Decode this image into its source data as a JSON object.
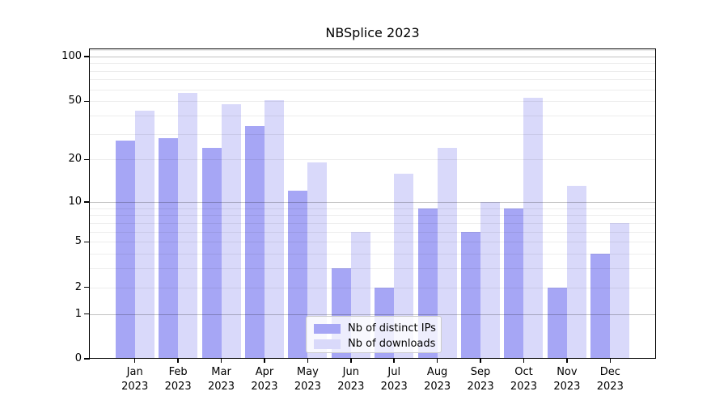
{
  "chart_data": {
    "type": "bar",
    "title": "NBSplice 2023",
    "months": [
      "Jan",
      "Feb",
      "Mar",
      "Apr",
      "May",
      "Jun",
      "Jul",
      "Aug",
      "Sep",
      "Oct",
      "Nov",
      "Dec"
    ],
    "year": "2023",
    "series": [
      {
        "name": "Nb of distinct IPs",
        "color": "#a6a6f5",
        "values": [
          27,
          28,
          24,
          34,
          12,
          3,
          2,
          9,
          6,
          9,
          2,
          4
        ]
      },
      {
        "name": "Nb of downloads",
        "color": "#d9d9fa",
        "values": [
          43,
          57,
          48,
          51,
          19,
          6,
          16,
          24,
          10,
          53,
          13,
          7
        ]
      }
    ],
    "yscale": "log1p",
    "yticks": [
      0,
      1,
      2,
      5,
      10,
      20,
      50,
      100
    ],
    "ylim": [
      0,
      113
    ],
    "grid": "horizontal, minor + major (at 1/10/100), drawn over bars",
    "legend_position": "inside lower-center",
    "colors": {
      "axis": "#000000",
      "grid_major": "#c2c2c2",
      "grid_minor": "#ededed",
      "legend_border": "#cccccc"
    }
  }
}
